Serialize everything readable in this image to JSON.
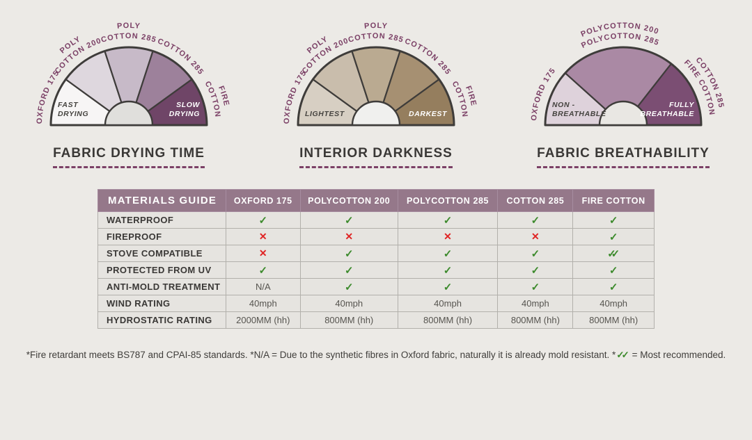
{
  "colors": {
    "page_background": "#eceae6",
    "accent_plum": "#7b4066",
    "gauge_outline": "#3e3c3a",
    "table_header_bg": "#95788a",
    "table_cell_bg": "#e6e4e0",
    "check_green": "#3c8a2c",
    "cross_red": "#e02424"
  },
  "gauges": [
    {
      "title": "FABRIC DRYING TIME",
      "hole_color": "#e0dfdc",
      "segments": [
        {
          "from": 180,
          "to": 144,
          "color": "#f7f5f5"
        },
        {
          "from": 144,
          "to": 108,
          "color": "#ded7de"
        },
        {
          "from": 108,
          "to": 72,
          "color": "#c7bac8"
        },
        {
          "from": 72,
          "to": 36,
          "color": "#9d819b"
        },
        {
          "from": 36,
          "to": 0,
          "color": "#6f4567"
        }
      ],
      "arc_labels": [
        {
          "angle": 161,
          "lines": [
            "OXFORD 175"
          ]
        },
        {
          "angle": 126,
          "lines": [
            "POLY",
            "COTTON 200"
          ]
        },
        {
          "angle": 90,
          "lines": [
            "POLY",
            "COTTON 285"
          ]
        },
        {
          "angle": 53,
          "lines": [
            "COTTON 285"
          ]
        },
        {
          "angle": 17,
          "lines": [
            "FIRE",
            "COTTON"
          ]
        }
      ],
      "inner_left": {
        "lines": [
          "FAST",
          "DRYING"
        ],
        "color": "#45433f"
      },
      "inner_right": {
        "lines": [
          "SLOW",
          "DRYING"
        ],
        "color": "#ffffff"
      }
    },
    {
      "title": "INTERIOR DARKNESS",
      "hole_color": "#f0f0ee",
      "segments": [
        {
          "from": 180,
          "to": 144,
          "color": "#d7cfc3"
        },
        {
          "from": 144,
          "to": 108,
          "color": "#c9bdac"
        },
        {
          "from": 108,
          "to": 72,
          "color": "#baaa91"
        },
        {
          "from": 72,
          "to": 36,
          "color": "#a69072"
        },
        {
          "from": 36,
          "to": 0,
          "color": "#957e5e"
        }
      ],
      "arc_labels": [
        {
          "angle": 161,
          "lines": [
            "OXFORD 175"
          ]
        },
        {
          "angle": 126,
          "lines": [
            "POLY",
            "COTTON 200"
          ]
        },
        {
          "angle": 90,
          "lines": [
            "POLY",
            "COTTON 285"
          ]
        },
        {
          "angle": 53,
          "lines": [
            "COTTON 285"
          ]
        },
        {
          "angle": 17,
          "lines": [
            "FIRE",
            "COTTON"
          ]
        }
      ],
      "inner_left": {
        "lines": [
          "LIGHTEST"
        ],
        "color": "#45433f"
      },
      "inner_right": {
        "lines": [
          "DARKEST"
        ],
        "color": "#ffffff"
      }
    },
    {
      "title": "FABRIC BREATHABILITY",
      "hole_color": "#e9e7e3",
      "segments": [
        {
          "from": 180,
          "to": 138,
          "color": "#ded2db"
        },
        {
          "from": 138,
          "to": 52,
          "color": "#aa89a4"
        },
        {
          "from": 52,
          "to": 0,
          "color": "#7b4e73"
        }
      ],
      "arc_labels": [
        {
          "angle": 159,
          "lines": [
            "OXFORD 175"
          ]
        },
        {
          "angle": 92,
          "lines": [
            "POLYCOTTON 200",
            "POLYCOTTON 285"
          ]
        },
        {
          "angle": 26,
          "lines": [
            "COTTON 285",
            "FIRE COTTON"
          ]
        }
      ],
      "inner_left": {
        "lines": [
          "NON -",
          "BREATHABLE"
        ],
        "color": "#45433f"
      },
      "inner_right": {
        "lines": [
          "FULLY",
          "BREATHABLE"
        ],
        "color": "#ffffff"
      }
    }
  ],
  "table": {
    "header": [
      "MATERIALS GUIDE",
      "OXFORD 175",
      "POLYCOTTON 200",
      "POLYCOTTON 285",
      "COTTON 285",
      "FIRE COTTON"
    ],
    "col_widths": [
      "23%",
      "13.4%",
      "17.5%",
      "18%",
      "13.5%",
      "14.6%"
    ],
    "rows": [
      {
        "label": "WATERPROOF",
        "values": [
          "check",
          "check",
          "check",
          "check",
          "check"
        ]
      },
      {
        "label": "FIREPROOF",
        "values": [
          "cross",
          "cross",
          "cross",
          "cross",
          "check"
        ]
      },
      {
        "label": "STOVE COMPATIBLE",
        "values": [
          "cross",
          "check",
          "check",
          "check",
          "double-check"
        ]
      },
      {
        "label": "PROTECTED FROM UV",
        "values": [
          "check",
          "check",
          "check",
          "check",
          "check"
        ]
      },
      {
        "label": "ANTI-MOLD TREATMENT",
        "values": [
          "N/A",
          "check",
          "check",
          "check",
          "check"
        ]
      },
      {
        "label": "WIND RATING",
        "values": [
          "40mph",
          "40mph",
          "40mph",
          "40mph",
          "40mph"
        ]
      },
      {
        "label": "HYDROSTATIC RATING",
        "values": [
          "2000MM (hh)",
          "800MM (hh)",
          "800MM (hh)",
          "800MM (hh)",
          "800MM (hh)"
        ]
      }
    ]
  },
  "glyphs": {
    "check": "✓",
    "cross": "✕"
  },
  "footnote": {
    "text_before": "*Fire retardant meets BS787 and CPAI-85 standards. *N/A =  Due to the synthetic fibres in Oxford fabric, naturally it is already mold resistant. *",
    "check_glyph": "✓✓",
    "text_after": " = Most recommended."
  },
  "chart_data": [
    {
      "type": "pie",
      "subtype": "semicircle-gauge",
      "title": "FABRIC DRYING TIME",
      "categories": [
        "OXFORD 175",
        "POLY COTTON 200",
        "POLY COTTON 285",
        "COTTON 285",
        "FIRE COTTON"
      ],
      "values": [
        36,
        36,
        36,
        36,
        36
      ],
      "scale_min_label": "FAST DRYING",
      "scale_max_label": "SLOW DRYING"
    },
    {
      "type": "pie",
      "subtype": "semicircle-gauge",
      "title": "INTERIOR DARKNESS",
      "categories": [
        "OXFORD 175",
        "POLY COTTON 200",
        "POLY COTTON 285",
        "COTTON 285",
        "FIRE COTTON"
      ],
      "values": [
        36,
        36,
        36,
        36,
        36
      ],
      "scale_min_label": "LIGHTEST",
      "scale_max_label": "DARKEST"
    },
    {
      "type": "pie",
      "subtype": "semicircle-gauge",
      "title": "FABRIC BREATHABILITY",
      "categories": [
        "OXFORD 175",
        "POLYCOTTON 200 / POLYCOTTON 285",
        "COTTON 285 / FIRE COTTON"
      ],
      "values": [
        42,
        86,
        52
      ],
      "scale_min_label": "NON - BREATHABLE",
      "scale_max_label": "FULLY BREATHABLE"
    },
    {
      "type": "table",
      "title": "MATERIALS GUIDE",
      "columns": [
        "OXFORD 175",
        "POLYCOTTON 200",
        "POLYCOTTON 285",
        "COTTON 285",
        "FIRE COTTON"
      ],
      "rows": [
        [
          "WATERPROOF",
          "yes",
          "yes",
          "yes",
          "yes",
          "yes"
        ],
        [
          "FIREPROOF",
          "no",
          "no",
          "no",
          "no",
          "yes"
        ],
        [
          "STOVE COMPATIBLE",
          "no",
          "yes",
          "yes",
          "yes",
          "yes (most recommended)"
        ],
        [
          "PROTECTED FROM UV",
          "yes",
          "yes",
          "yes",
          "yes",
          "yes"
        ],
        [
          "ANTI-MOLD TREATMENT",
          "N/A",
          "yes",
          "yes",
          "yes",
          "yes"
        ],
        [
          "WIND RATING",
          "40mph",
          "40mph",
          "40mph",
          "40mph",
          "40mph"
        ],
        [
          "HYDROSTATIC RATING",
          "2000MM (hh)",
          "800MM (hh)",
          "800MM (hh)",
          "800MM (hh)",
          "800MM (hh)"
        ]
      ]
    }
  ]
}
